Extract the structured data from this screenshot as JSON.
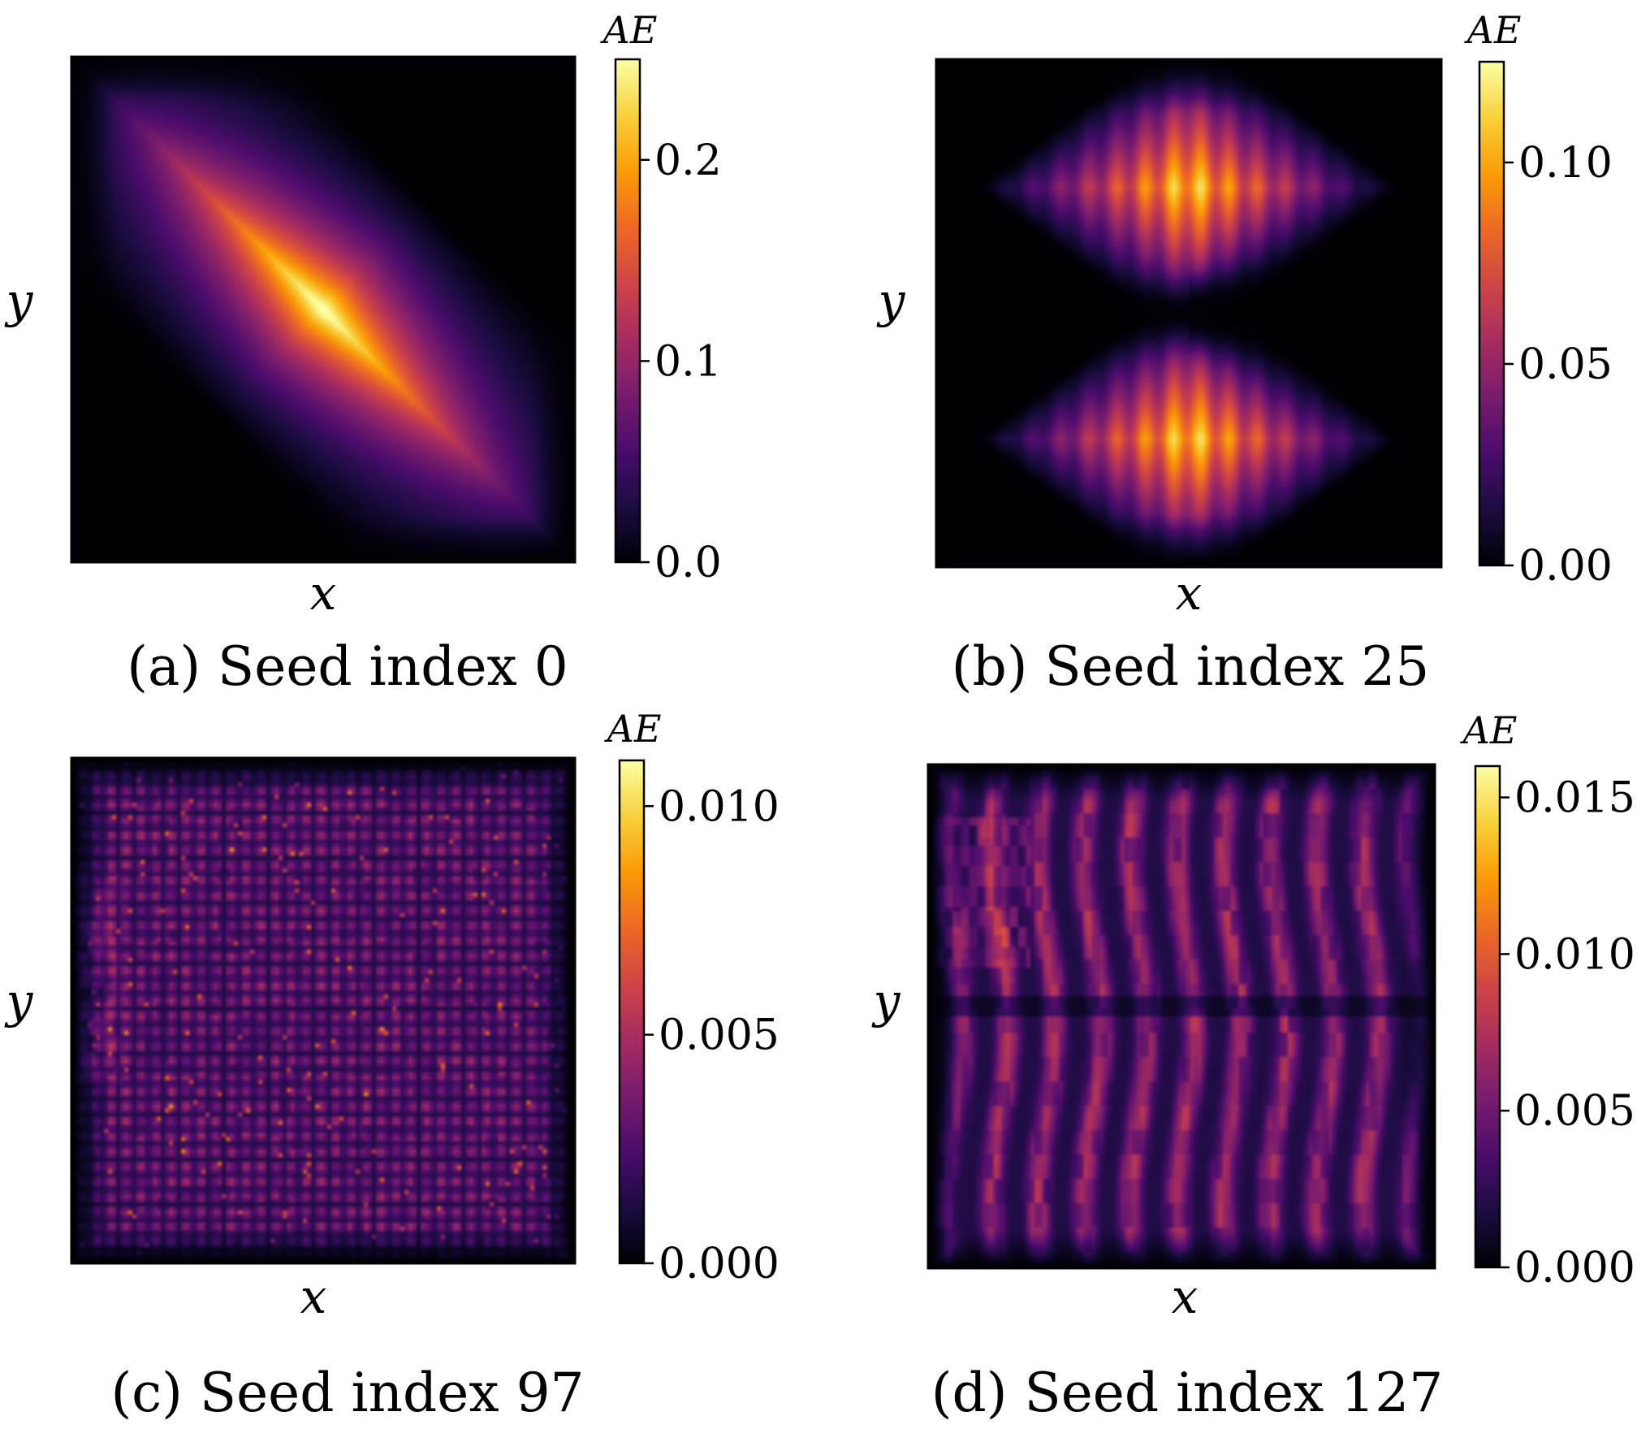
{
  "figure": {
    "colormap": [
      "#000004",
      "#1b0c41",
      "#4a0c6b",
      "#781c6d",
      "#a52c60",
      "#cf4446",
      "#ed6925",
      "#fb9b06",
      "#f7d13d",
      "#fcffa4"
    ]
  },
  "chart_data": [
    {
      "type": "heatmap",
      "panel": "a",
      "caption": "(a) Seed index 0",
      "xlabel": "x",
      "ylabel": "y",
      "colorbar_title": "AE",
      "colorbar_range": [
        0,
        0.25
      ],
      "colorbar_ticks": [
        0.0,
        0.1,
        0.2
      ],
      "colorbar_tick_labels": [
        "0.0",
        "0.1",
        "0.2"
      ],
      "pattern": "diagonal"
    },
    {
      "type": "heatmap",
      "panel": "b",
      "caption": "(b) Seed index 25",
      "xlabel": "x",
      "ylabel": "y",
      "colorbar_title": "AE",
      "colorbar_range": [
        0,
        0.125
      ],
      "colorbar_ticks": [
        0.0,
        0.05,
        0.1
      ],
      "colorbar_tick_labels": [
        "0.00",
        "0.05",
        "0.10"
      ],
      "pattern": "two_lobes"
    },
    {
      "type": "heatmap",
      "panel": "c",
      "caption": "(c) Seed index 97",
      "xlabel": "x",
      "ylabel": "y",
      "colorbar_title": "AE",
      "colorbar_range": [
        0,
        0.011
      ],
      "colorbar_ticks": [
        0.0,
        0.005,
        0.01
      ],
      "colorbar_tick_labels": [
        "0.000",
        "0.005",
        "0.010"
      ],
      "pattern": "checker"
    },
    {
      "type": "heatmap",
      "panel": "d",
      "caption": "(d) Seed index 127",
      "xlabel": "x",
      "ylabel": "y",
      "colorbar_title": "AE",
      "colorbar_range": [
        0,
        0.016
      ],
      "colorbar_ticks": [
        0.0,
        0.005,
        0.01,
        0.015
      ],
      "colorbar_tick_labels": [
        "0.000",
        "0.005",
        "0.010",
        "0.015"
      ],
      "pattern": "stripes"
    }
  ]
}
